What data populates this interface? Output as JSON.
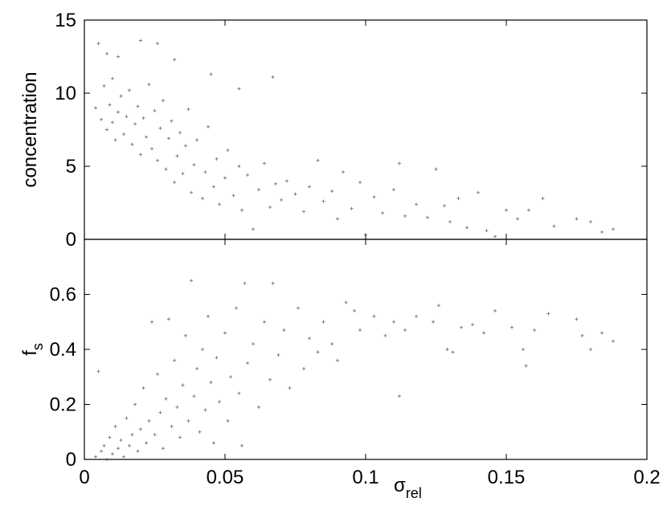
{
  "chart_data": [
    {
      "type": "scatter",
      "ylabel": "concentration",
      "color": "#808080",
      "xlim": [
        0,
        0.2
      ],
      "xticks": [
        0,
        0.05,
        0.1,
        0.15,
        0.2
      ],
      "ylim": [
        0,
        15
      ],
      "yticks": [
        0,
        5,
        10,
        15
      ],
      "x": [
        0.005,
        0.008,
        0.012,
        0.02,
        0.026,
        0.032,
        0.045,
        0.067,
        0.055,
        0.004,
        0.006,
        0.007,
        0.008,
        0.009,
        0.01,
        0.01,
        0.011,
        0.012,
        0.013,
        0.014,
        0.015,
        0.016,
        0.017,
        0.018,
        0.019,
        0.02,
        0.021,
        0.022,
        0.023,
        0.024,
        0.025,
        0.026,
        0.027,
        0.028,
        0.029,
        0.03,
        0.031,
        0.032,
        0.033,
        0.034,
        0.035,
        0.036,
        0.037,
        0.038,
        0.039,
        0.04,
        0.042,
        0.043,
        0.044,
        0.046,
        0.047,
        0.048,
        0.05,
        0.051,
        0.053,
        0.055,
        0.056,
        0.058,
        0.06,
        0.062,
        0.064,
        0.066,
        0.068,
        0.07,
        0.072,
        0.075,
        0.078,
        0.08,
        0.083,
        0.085,
        0.088,
        0.09,
        0.092,
        0.095,
        0.098,
        0.1,
        0.103,
        0.106,
        0.11,
        0.112,
        0.114,
        0.118,
        0.122,
        0.125,
        0.128,
        0.13,
        0.133,
        0.136,
        0.14,
        0.143,
        0.146,
        0.15,
        0.154,
        0.158,
        0.163,
        0.167,
        0.175,
        0.18,
        0.184,
        0.188
      ],
      "values": [
        13.4,
        12.7,
        12.5,
        13.6,
        13.4,
        12.3,
        11.3,
        11.1,
        10.3,
        9.0,
        8.2,
        10.5,
        7.5,
        9.2,
        8.0,
        11.0,
        6.8,
        8.7,
        9.8,
        7.2,
        8.4,
        10.2,
        6.5,
        7.9,
        9.1,
        5.8,
        8.3,
        7.0,
        10.6,
        6.2,
        8.8,
        5.4,
        7.6,
        9.5,
        4.8,
        6.9,
        8.1,
        3.9,
        5.7,
        7.3,
        4.5,
        6.4,
        8.9,
        3.2,
        5.1,
        6.8,
        2.8,
        4.6,
        7.7,
        3.6,
        5.5,
        2.4,
        4.2,
        6.1,
        3.0,
        5.0,
        2.0,
        4.4,
        0.7,
        3.4,
        5.2,
        2.2,
        3.8,
        2.7,
        4.0,
        3.1,
        1.9,
        3.6,
        5.4,
        2.6,
        3.3,
        1.4,
        4.6,
        2.1,
        3.9,
        0.3,
        2.9,
        1.8,
        3.4,
        5.2,
        1.6,
        2.4,
        1.5,
        4.8,
        2.3,
        1.2,
        2.8,
        0.8,
        3.2,
        0.6,
        0.2,
        2.0,
        1.4,
        2.0,
        2.8,
        0.9,
        1.4,
        1.2,
        0.5,
        0.7
      ]
    },
    {
      "type": "scatter",
      "ylabel": "f",
      "ylabel_sub": "s",
      "xlabel": "σ",
      "xlabel_sub": "rel",
      "color": "#808080",
      "xlim": [
        0,
        0.2
      ],
      "xticks": [
        0,
        0.05,
        0.1,
        0.15,
        0.2
      ],
      "ylim": [
        0,
        0.8
      ],
      "yticks": [
        0,
        0.2,
        0.4,
        0.6
      ],
      "x": [
        0.004,
        0.005,
        0.006,
        0.007,
        0.008,
        0.009,
        0.01,
        0.011,
        0.012,
        0.013,
        0.014,
        0.015,
        0.016,
        0.017,
        0.018,
        0.019,
        0.02,
        0.021,
        0.022,
        0.023,
        0.024,
        0.025,
        0.026,
        0.027,
        0.028,
        0.029,
        0.03,
        0.031,
        0.032,
        0.033,
        0.034,
        0.035,
        0.036,
        0.037,
        0.038,
        0.039,
        0.04,
        0.041,
        0.042,
        0.043,
        0.044,
        0.045,
        0.046,
        0.047,
        0.048,
        0.05,
        0.051,
        0.052,
        0.054,
        0.055,
        0.056,
        0.057,
        0.058,
        0.06,
        0.062,
        0.064,
        0.066,
        0.067,
        0.069,
        0.071,
        0.073,
        0.076,
        0.078,
        0.08,
        0.083,
        0.085,
        0.088,
        0.09,
        0.093,
        0.096,
        0.098,
        0.103,
        0.107,
        0.11,
        0.112,
        0.114,
        0.118,
        0.124,
        0.126,
        0.129,
        0.131,
        0.134,
        0.138,
        0.142,
        0.146,
        0.152,
        0.156,
        0.157,
        0.16,
        0.165,
        0.175,
        0.177,
        0.18,
        0.184,
        0.188
      ],
      "values": [
        0.01,
        0.32,
        0.03,
        0.05,
        0.0,
        0.08,
        0.02,
        0.12,
        0.04,
        0.07,
        0.01,
        0.15,
        0.05,
        0.09,
        0.2,
        0.03,
        0.11,
        0.26,
        0.06,
        0.14,
        0.5,
        0.09,
        0.31,
        0.17,
        0.04,
        0.22,
        0.51,
        0.12,
        0.36,
        0.19,
        0.08,
        0.27,
        0.45,
        0.14,
        0.65,
        0.23,
        0.33,
        0.1,
        0.4,
        0.18,
        0.52,
        0.28,
        0.06,
        0.37,
        0.21,
        0.46,
        0.14,
        0.3,
        0.55,
        0.24,
        0.05,
        0.64,
        0.35,
        0.42,
        0.19,
        0.5,
        0.29,
        0.64,
        0.38,
        0.47,
        0.26,
        0.55,
        0.33,
        0.44,
        0.39,
        0.5,
        0.42,
        0.36,
        0.57,
        0.54,
        0.47,
        0.52,
        0.45,
        0.5,
        0.23,
        0.47,
        0.52,
        0.5,
        0.56,
        0.4,
        0.39,
        0.48,
        0.49,
        0.46,
        0.54,
        0.48,
        0.4,
        0.34,
        0.47,
        0.53,
        0.51,
        0.45,
        0.4,
        0.46,
        0.43
      ]
    }
  ]
}
